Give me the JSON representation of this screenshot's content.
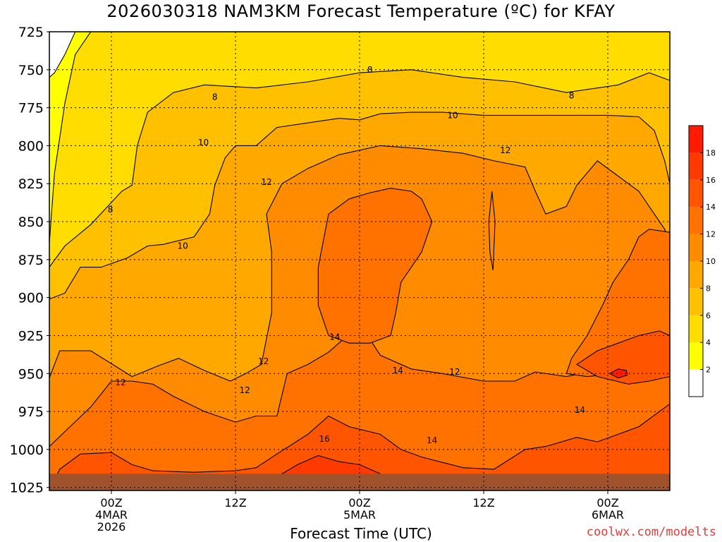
{
  "title": "2026030318 NAM3KM Forecast Temperature (ºC) for KFAY",
  "credit": "coolwx.com/modelts",
  "chart_data": {
    "type": "heatmap",
    "title": "2026030318 NAM3KM Forecast Temperature (ºC) for KFAY",
    "xlabel": "Forecast Time (UTC)",
    "ylabel": "",
    "y_ticks": [
      725,
      750,
      775,
      800,
      825,
      850,
      875,
      900,
      925,
      950,
      975,
      1000,
      1025
    ],
    "ylim": [
      1027,
      725
    ],
    "x_ticks": [
      {
        "hour": 6,
        "label": [
          "00Z",
          "4MAR",
          "2026"
        ]
      },
      {
        "hour": 18,
        "label": [
          "12Z"
        ]
      },
      {
        "hour": 30,
        "label": [
          "00Z",
          "5MAR"
        ]
      },
      {
        "hour": 42,
        "label": [
          "12Z"
        ]
      },
      {
        "hour": 54,
        "label": [
          "00Z",
          "6MAR"
        ]
      }
    ],
    "xlim": [
      0,
      60
    ],
    "contour_levels": [
      2,
      4,
      6,
      8,
      10,
      12,
      14,
      16,
      18
    ],
    "colorbar": {
      "levels": [
        2,
        4,
        6,
        8,
        10,
        12,
        14,
        16,
        18
      ],
      "colors": [
        "#ffffff",
        "#ffff00",
        "#ffdd00",
        "#ffc000",
        "#ffa800",
        "#ff8c00",
        "#ff7200",
        "#ff5500",
        "#ff3a00",
        "#ff1a00"
      ]
    },
    "contour_labels": [
      {
        "text": "8",
        "hour": 31.0,
        "pres": 750
      },
      {
        "text": "8",
        "hour": 16.0,
        "pres": 768
      },
      {
        "text": "8",
        "hour": 50.5,
        "pres": 767
      },
      {
        "text": "10",
        "hour": 39.0,
        "pres": 780
      },
      {
        "text": "10",
        "hour": 14.9,
        "pres": 798
      },
      {
        "text": "12",
        "hour": 44.1,
        "pres": 803
      },
      {
        "text": "12",
        "hour": 21.0,
        "pres": 824
      },
      {
        "text": "8",
        "hour": 5.9,
        "pres": 842
      },
      {
        "text": "10",
        "hour": 12.9,
        "pres": 866
      },
      {
        "text": "14",
        "hour": 27.6,
        "pres": 926
      },
      {
        "text": "12",
        "hour": 20.7,
        "pres": 942
      },
      {
        "text": "14",
        "hour": 33.7,
        "pres": 948
      },
      {
        "text": "12",
        "hour": 39.2,
        "pres": 949
      },
      {
        "text": "12",
        "hour": 6.9,
        "pres": 956
      },
      {
        "text": "12",
        "hour": 18.9,
        "pres": 961
      },
      {
        "text": "14",
        "hour": 51.3,
        "pres": 974
      },
      {
        "text": "16",
        "hour": 26.6,
        "pres": 993
      },
      {
        "text": "14",
        "hour": 37.0,
        "pres": 994
      }
    ],
    "bands": [
      {
        "level": 6,
        "color": "#ffdd00",
        "top": [
          [
            0,
            864
          ],
          [
            0.5,
            818
          ],
          [
            1.5,
            772
          ],
          [
            2.5,
            740
          ],
          [
            4,
            725
          ],
          [
            60,
            725
          ],
          [
            60,
            725
          ]
        ]
      },
      {
        "level": 8,
        "color": "#ffc000",
        "top": [
          [
            0,
            880
          ],
          [
            1.5,
            866
          ],
          [
            4,
            852
          ],
          [
            7,
            830
          ],
          [
            8,
            826
          ],
          [
            8.5,
            800
          ],
          [
            9.5,
            778
          ],
          [
            12,
            765
          ],
          [
            15,
            760
          ],
          [
            20,
            762
          ],
          [
            25,
            758
          ],
          [
            30,
            752
          ],
          [
            35,
            750
          ],
          [
            40,
            755
          ],
          [
            45,
            758
          ],
          [
            50,
            765
          ],
          [
            55,
            760
          ],
          [
            58,
            752
          ],
          [
            60,
            757
          ]
        ]
      },
      {
        "level": 10,
        "color": "#ffa800",
        "top": [
          [
            0,
            901
          ],
          [
            1.5,
            897
          ],
          [
            3,
            880
          ],
          [
            5,
            880
          ],
          [
            7.5,
            874
          ],
          [
            9.5,
            866
          ],
          [
            11,
            865
          ],
          [
            14,
            860
          ],
          [
            15.5,
            845
          ],
          [
            16,
            826
          ],
          [
            17,
            808
          ],
          [
            18,
            800
          ],
          [
            20,
            800
          ],
          [
            22,
            788
          ],
          [
            25,
            785
          ],
          [
            28,
            782
          ],
          [
            30,
            783
          ],
          [
            32,
            779
          ],
          [
            35,
            778
          ],
          [
            38,
            778
          ],
          [
            42,
            780
          ],
          [
            46,
            780
          ],
          [
            50,
            780
          ],
          [
            54,
            780
          ],
          [
            57,
            781
          ],
          [
            58.5,
            790
          ],
          [
            59.5,
            810
          ],
          [
            60,
            825
          ]
        ]
      },
      {
        "level": 12,
        "color": "#ff8c00",
        "top": [
          [
            0,
            953
          ],
          [
            1,
            935
          ],
          [
            4,
            935
          ],
          [
            8,
            952
          ],
          [
            10.5,
            945
          ],
          [
            12.5,
            940
          ],
          [
            15,
            948
          ],
          [
            17.5,
            955
          ],
          [
            19,
            950
          ],
          [
            20.5,
            944
          ],
          [
            21.5,
            910
          ],
          [
            21.5,
            870
          ],
          [
            21,
            845
          ],
          [
            22.5,
            825
          ],
          [
            25,
            815
          ],
          [
            28,
            806
          ],
          [
            32,
            800
          ],
          [
            36,
            802
          ],
          [
            40,
            805
          ],
          [
            43,
            810
          ],
          [
            46,
            814
          ],
          [
            47,
            830
          ],
          [
            48,
            845
          ],
          [
            50,
            840
          ],
          [
            51,
            826
          ],
          [
            53,
            810
          ],
          [
            55,
            820
          ],
          [
            57,
            830
          ],
          [
            59.5,
            855
          ],
          [
            60,
            865
          ]
        ]
      },
      {
        "level": 14,
        "color": "#ff7200",
        "top": [
          [
            0,
            998
          ],
          [
            2,
            985
          ],
          [
            4,
            972
          ],
          [
            6,
            955
          ],
          [
            8,
            955
          ],
          [
            10,
            957
          ],
          [
            12,
            965
          ],
          [
            15,
            975
          ],
          [
            18,
            982
          ],
          [
            20,
            978
          ],
          [
            22,
            978
          ],
          [
            23,
            950
          ],
          [
            25,
            944
          ],
          [
            27,
            936
          ],
          [
            29,
            924
          ],
          [
            30.5,
            922
          ],
          [
            32,
            938
          ],
          [
            35,
            947
          ],
          [
            38,
            950
          ],
          [
            42,
            955
          ],
          [
            45,
            955
          ],
          [
            47,
            949
          ],
          [
            50,
            952
          ],
          [
            53,
            948
          ],
          [
            55,
            944
          ],
          [
            57,
            940
          ],
          [
            58.5,
            935
          ],
          [
            60,
            945
          ]
        ]
      },
      {
        "level": 16,
        "color": "#ff5500",
        "top": [
          [
            0,
            1027
          ],
          [
            1,
            1013
          ],
          [
            3,
            1003
          ],
          [
            6,
            1002
          ],
          [
            8,
            1010
          ],
          [
            10,
            1014
          ],
          [
            14,
            1015
          ],
          [
            18,
            1014
          ],
          [
            20,
            1012
          ],
          [
            22,
            1003
          ],
          [
            25,
            990
          ],
          [
            27,
            978
          ],
          [
            29,
            985
          ],
          [
            32,
            990
          ],
          [
            34,
            1000
          ],
          [
            36,
            1005
          ],
          [
            40,
            1012
          ],
          [
            43,
            1013
          ],
          [
            46,
            1000
          ],
          [
            48,
            998
          ],
          [
            51,
            992
          ],
          [
            53,
            995
          ],
          [
            55,
            990
          ],
          [
            57,
            985
          ],
          [
            59,
            975
          ],
          [
            60,
            970
          ]
        ]
      },
      {
        "level": 17,
        "color": "#ff3a00",
        "top": [
          [
            0,
            1027
          ],
          [
            12,
            1027
          ],
          [
            20,
            1027
          ],
          [
            22,
            1018
          ],
          [
            24,
            1010
          ],
          [
            26,
            1004
          ],
          [
            28,
            1008
          ],
          [
            30,
            1010
          ],
          [
            32,
            1016
          ],
          [
            34,
            1027
          ],
          [
            60,
            1027
          ]
        ]
      }
    ],
    "inner_blobs": [
      {
        "level": 14,
        "color": "#ff7200",
        "pts": [
          [
            26,
            880
          ],
          [
            27,
            845
          ],
          [
            29,
            835
          ],
          [
            31,
            831
          ],
          [
            33,
            828
          ],
          [
            35,
            830
          ],
          [
            36,
            835
          ],
          [
            37,
            850
          ],
          [
            36,
            870
          ],
          [
            34,
            890
          ],
          [
            33.5,
            910
          ],
          [
            33,
            925
          ],
          [
            31,
            930
          ],
          [
            29,
            930
          ],
          [
            27,
            925
          ],
          [
            26,
            905
          ]
        ]
      },
      {
        "level": 14,
        "color": "#ff7200",
        "pts": [
          [
            50,
            950
          ],
          [
            50.5,
            940
          ],
          [
            52,
            925
          ],
          [
            53.5,
            905
          ],
          [
            54.5,
            890
          ],
          [
            56,
            875
          ],
          [
            57,
            860
          ],
          [
            58,
            855
          ],
          [
            60,
            857
          ],
          [
            60,
            940
          ],
          [
            58,
            945
          ],
          [
            55,
            950
          ],
          [
            52,
            952
          ]
        ]
      },
      {
        "level": 16,
        "color": "#ff5500",
        "pts": [
          [
            51,
            944
          ],
          [
            53,
            935
          ],
          [
            55,
            930
          ],
          [
            57,
            925
          ],
          [
            59,
            922
          ],
          [
            60,
            925
          ],
          [
            60,
            952
          ],
          [
            58,
            955
          ],
          [
            56,
            957
          ],
          [
            53,
            952
          ]
        ]
      },
      {
        "level": 18,
        "color": "#ff1a00",
        "pts": [
          [
            54.2,
            950
          ],
          [
            55,
            947
          ],
          [
            55.8,
            948
          ],
          [
            55.9,
            951
          ],
          [
            55,
            953
          ]
        ]
      },
      {
        "level": 12,
        "color": "#ff8c00",
        "pts": [
          [
            42.5,
            850
          ],
          [
            42.8,
            830
          ],
          [
            43.1,
            850
          ],
          [
            42.9,
            882
          ],
          [
            42.6,
            870
          ]
        ]
      },
      {
        "level": 2,
        "color": "#ffffff",
        "pts": [
          [
            0,
            725
          ],
          [
            2.5,
            725
          ],
          [
            1.5,
            740
          ],
          [
            0.5,
            752
          ],
          [
            0,
            755
          ]
        ]
      }
    ],
    "ground": {
      "color": "#a0522d",
      "pres_top": 1016
    }
  }
}
